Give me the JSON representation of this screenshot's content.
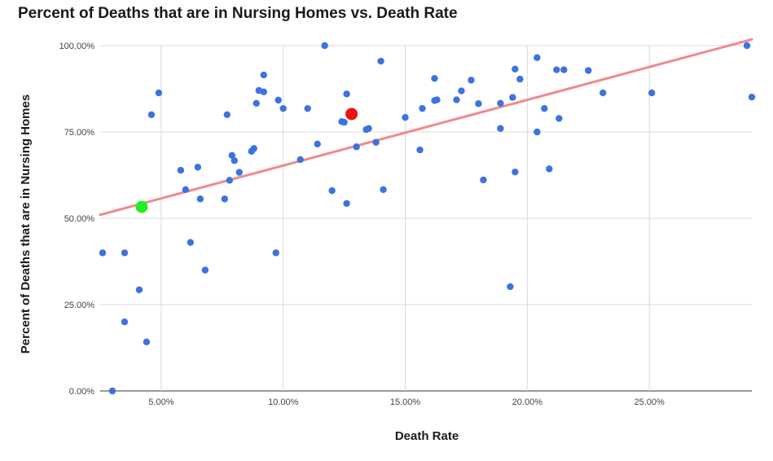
{
  "chart_data": {
    "type": "scatter",
    "title": "Percent of Deaths that are in Nursing Homes vs. Death Rate",
    "xlabel": "Death Rate",
    "ylabel": "Percent of Deaths that are in Nursing Homes",
    "xlim": [
      2.5,
      29.2
    ],
    "ylim": [
      0,
      100
    ],
    "x_ticks": [
      5,
      10,
      15,
      20,
      25
    ],
    "x_tick_labels": [
      "5.00%",
      "10.00%",
      "15.00%",
      "20.00%",
      "25.00%"
    ],
    "y_ticks": [
      0,
      25,
      50,
      75,
      100
    ],
    "y_tick_labels": [
      "0.00%",
      "25.00%",
      "50.00%",
      "75.00%",
      "100.00%"
    ],
    "grid": true,
    "point_color": "#3b73e0",
    "trendline": {
      "color": "#f08a8a",
      "x": [
        2.5,
        29.2
      ],
      "y": [
        51.0,
        101.8
      ]
    },
    "highlights": [
      {
        "x": 4.2,
        "y": 53.3,
        "color": "#22ee22"
      },
      {
        "x": 12.8,
        "y": 80.2,
        "color": "#ee1111"
      }
    ],
    "points": [
      [
        2.6,
        40.0
      ],
      [
        3.0,
        0.0
      ],
      [
        3.5,
        40.0
      ],
      [
        3.5,
        20.0
      ],
      [
        4.1,
        29.3
      ],
      [
        4.4,
        14.2
      ],
      [
        4.6,
        80.0
      ],
      [
        4.9,
        86.3
      ],
      [
        5.8,
        63.9
      ],
      [
        6.0,
        58.3
      ],
      [
        6.2,
        43.0
      ],
      [
        6.5,
        64.8
      ],
      [
        6.6,
        55.6
      ],
      [
        6.8,
        35.0
      ],
      [
        7.6,
        55.6
      ],
      [
        7.7,
        80.0
      ],
      [
        7.8,
        61.0
      ],
      [
        7.9,
        68.2
      ],
      [
        8.0,
        66.7
      ],
      [
        8.2,
        63.3
      ],
      [
        8.7,
        69.4
      ],
      [
        8.8,
        70.2
      ],
      [
        8.9,
        83.3
      ],
      [
        9.0,
        87.0
      ],
      [
        9.2,
        86.6
      ],
      [
        9.2,
        91.5
      ],
      [
        9.7,
        40.0
      ],
      [
        9.8,
        84.2
      ],
      [
        10.0,
        81.8
      ],
      [
        10.7,
        67.0
      ],
      [
        11.0,
        81.8
      ],
      [
        11.4,
        71.5
      ],
      [
        11.7,
        100.0
      ],
      [
        12.0,
        58.0
      ],
      [
        12.4,
        78.0
      ],
      [
        12.5,
        77.8
      ],
      [
        12.6,
        54.3
      ],
      [
        12.6,
        86.0
      ],
      [
        13.0,
        70.7
      ],
      [
        13.4,
        75.7
      ],
      [
        13.5,
        76.0
      ],
      [
        13.8,
        72.0
      ],
      [
        14.0,
        95.5
      ],
      [
        14.1,
        58.3
      ],
      [
        15.0,
        79.2
      ],
      [
        15.6,
        69.8
      ],
      [
        15.7,
        81.8
      ],
      [
        16.2,
        84.1
      ],
      [
        16.2,
        90.5
      ],
      [
        16.3,
        84.3
      ],
      [
        17.1,
        84.3
      ],
      [
        17.3,
        86.9
      ],
      [
        17.7,
        90.0
      ],
      [
        18.0,
        83.2
      ],
      [
        18.2,
        61.1
      ],
      [
        18.9,
        83.3
      ],
      [
        18.9,
        76.0
      ],
      [
        19.3,
        30.2
      ],
      [
        19.4,
        85.0
      ],
      [
        19.5,
        63.4
      ],
      [
        19.5,
        93.2
      ],
      [
        19.7,
        90.3
      ],
      [
        20.4,
        96.5
      ],
      [
        20.4,
        75.0
      ],
      [
        20.7,
        81.8
      ],
      [
        20.9,
        64.3
      ],
      [
        21.2,
        93.0
      ],
      [
        21.3,
        78.9
      ],
      [
        21.5,
        93.0
      ],
      [
        22.5,
        92.8
      ],
      [
        23.1,
        86.3
      ],
      [
        25.1,
        86.3
      ],
      [
        29.0,
        100.0
      ],
      [
        29.2,
        85.1
      ]
    ]
  }
}
